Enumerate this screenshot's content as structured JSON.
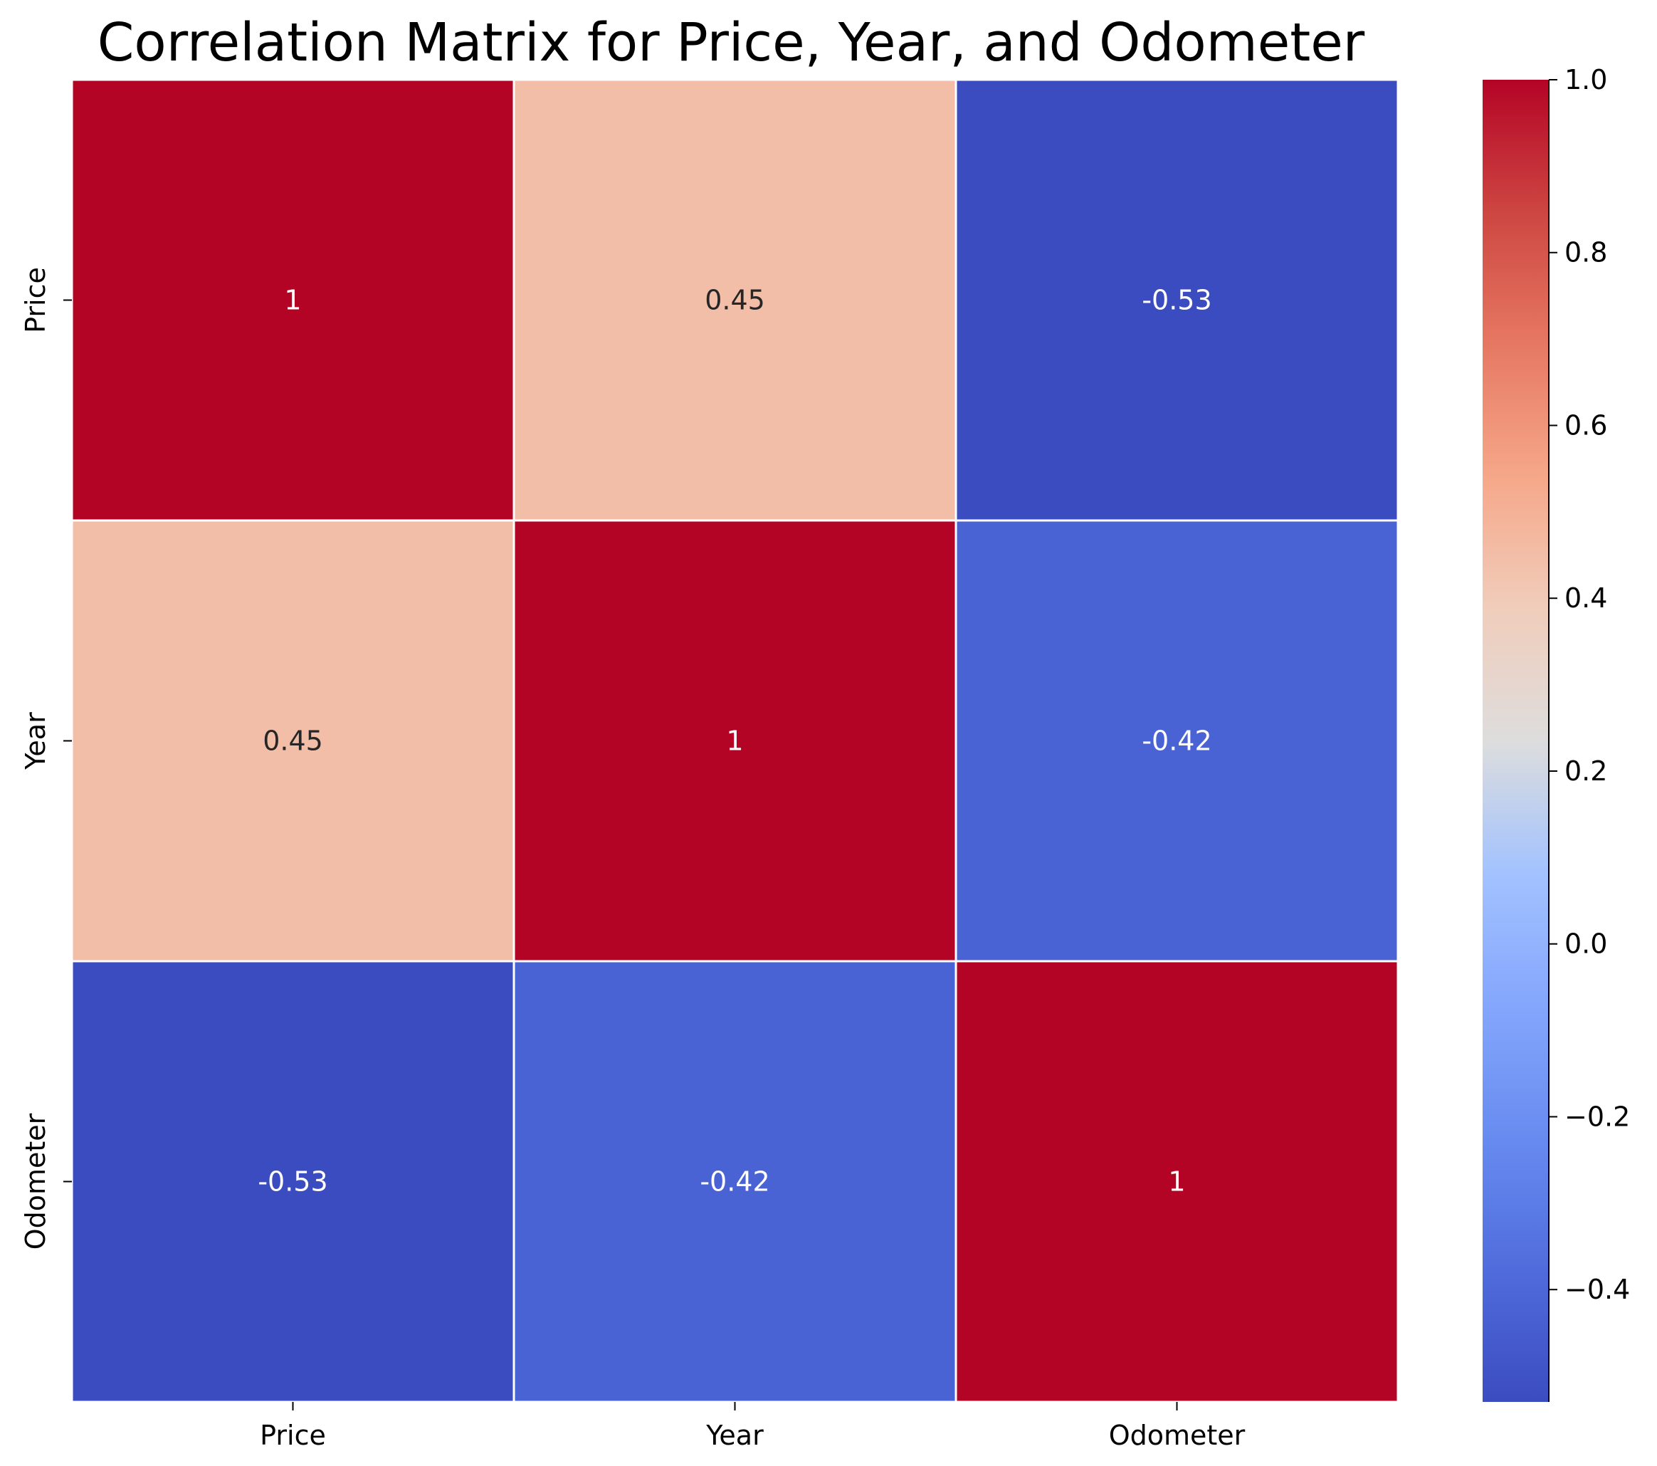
{
  "chart_data": {
    "type": "heatmap",
    "title": "Correlation Matrix for Price, Year, and Odometer",
    "xlabel": "",
    "ylabel": "",
    "x_categories": [
      "Price",
      "Year",
      "Odometer"
    ],
    "y_categories": [
      "Price",
      "Year",
      "Odometer"
    ],
    "values": [
      [
        1,
        0.45,
        -0.53
      ],
      [
        0.45,
        1,
        -0.42
      ],
      [
        -0.53,
        -0.42,
        1
      ]
    ],
    "annotations": [
      [
        "1",
        "0.45",
        "-0.53"
      ],
      [
        "0.45",
        "1",
        "-0.42"
      ],
      [
        "-0.53",
        "-0.42",
        "1"
      ]
    ],
    "colormap": "coolwarm",
    "colorbar": {
      "range": [
        -0.53,
        1.0
      ],
      "ticks": [
        -0.4,
        -0.2,
        0.0,
        0.2,
        0.4,
        0.6,
        0.8,
        1.0
      ],
      "tick_labels": [
        "−0.4",
        "−0.2",
        "0.0",
        "0.2",
        "0.4",
        "0.6",
        "0.8",
        "1.0"
      ]
    },
    "cell_border_color": "#ffffff"
  }
}
